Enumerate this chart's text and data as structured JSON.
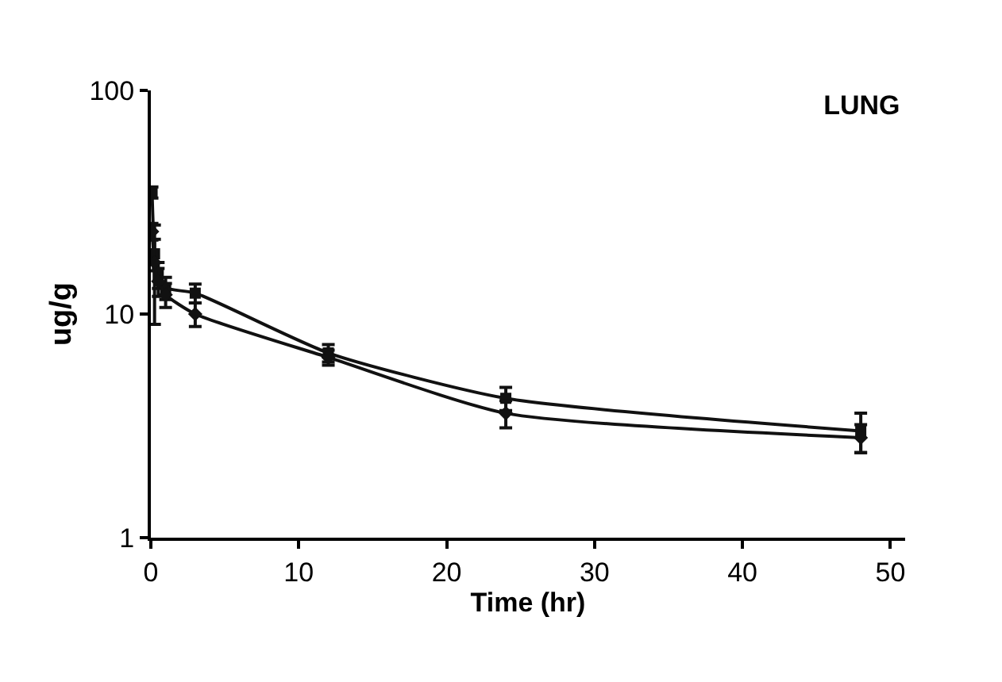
{
  "chart_data": {
    "type": "line",
    "title": "LUNG",
    "xlabel": "Time (hr)",
    "ylabel": "ug/g",
    "log": "y",
    "xlim": [
      0,
      51
    ],
    "xticks": [
      0,
      10,
      20,
      30,
      40,
      50
    ],
    "ylim": [
      1,
      100
    ],
    "yticks": [
      1,
      10,
      100
    ],
    "line_style": "solid",
    "series": [
      {
        "color": "#111111",
        "marker": "square",
        "x": [
          0.083,
          0.25,
          0.5,
          1,
          3,
          12,
          24,
          48
        ],
        "values": [
          35,
          18.6,
          15,
          13.1,
          12.4,
          6.7,
          4.2,
          3.0
        ],
        "errors": [
          2,
          3,
          2,
          1.5,
          1.2,
          0.6,
          0.5,
          0.6
        ]
      },
      {
        "color": "#111111",
        "marker": "diamond",
        "x": [
          0.083,
          0.25,
          0.5,
          1,
          3,
          12,
          24,
          48
        ],
        "values": [
          23.4,
          17,
          14,
          12.2,
          10.0,
          6.4,
          3.6,
          2.8
        ],
        "errors": [
          2,
          8,
          2,
          1.5,
          1.2,
          0.5,
          0.5,
          0.4
        ]
      }
    ]
  }
}
